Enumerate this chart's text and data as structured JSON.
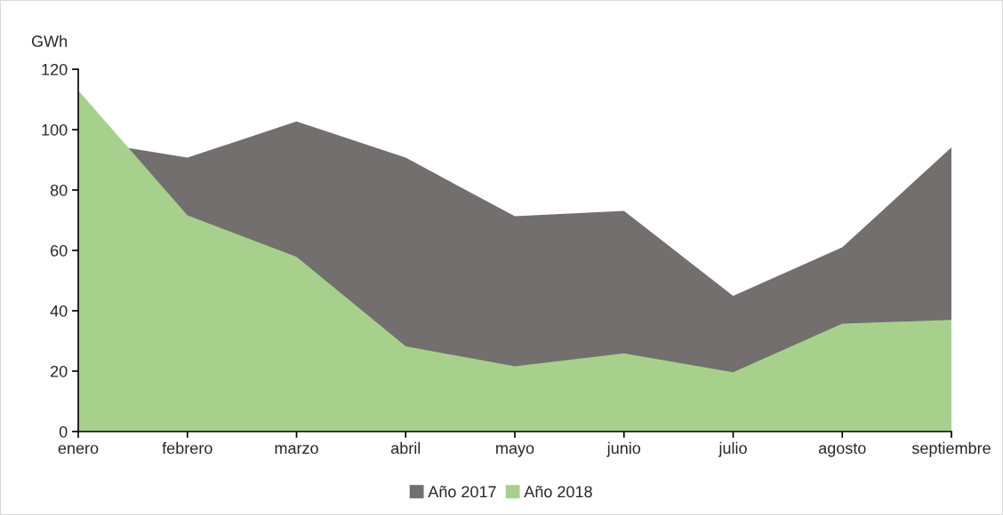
{
  "chart_data": {
    "type": "area",
    "ylabel": "GWh",
    "categories": [
      "enero",
      "febrero",
      "marzo",
      "abril",
      "mayo",
      "junio",
      "julio",
      "agosto",
      "septiembre"
    ],
    "series": [
      {
        "name": "Año 2017",
        "color": "#736f6e",
        "values": [
          96.6,
          90.7,
          102.7,
          90.7,
          71.3,
          73.1,
          44.9,
          61.0,
          94.1
        ]
      },
      {
        "name": "Año 2018",
        "color": "#a8d08d",
        "values": [
          113,
          71.6,
          57.9,
          28.2,
          21.6,
          25.9,
          19.6,
          35.7,
          37.0
        ]
      }
    ],
    "ylim": [
      0,
      120
    ],
    "yticks": [
      0,
      20,
      40,
      60,
      80,
      100,
      120
    ],
    "grid": false,
    "legend": "bottom"
  }
}
